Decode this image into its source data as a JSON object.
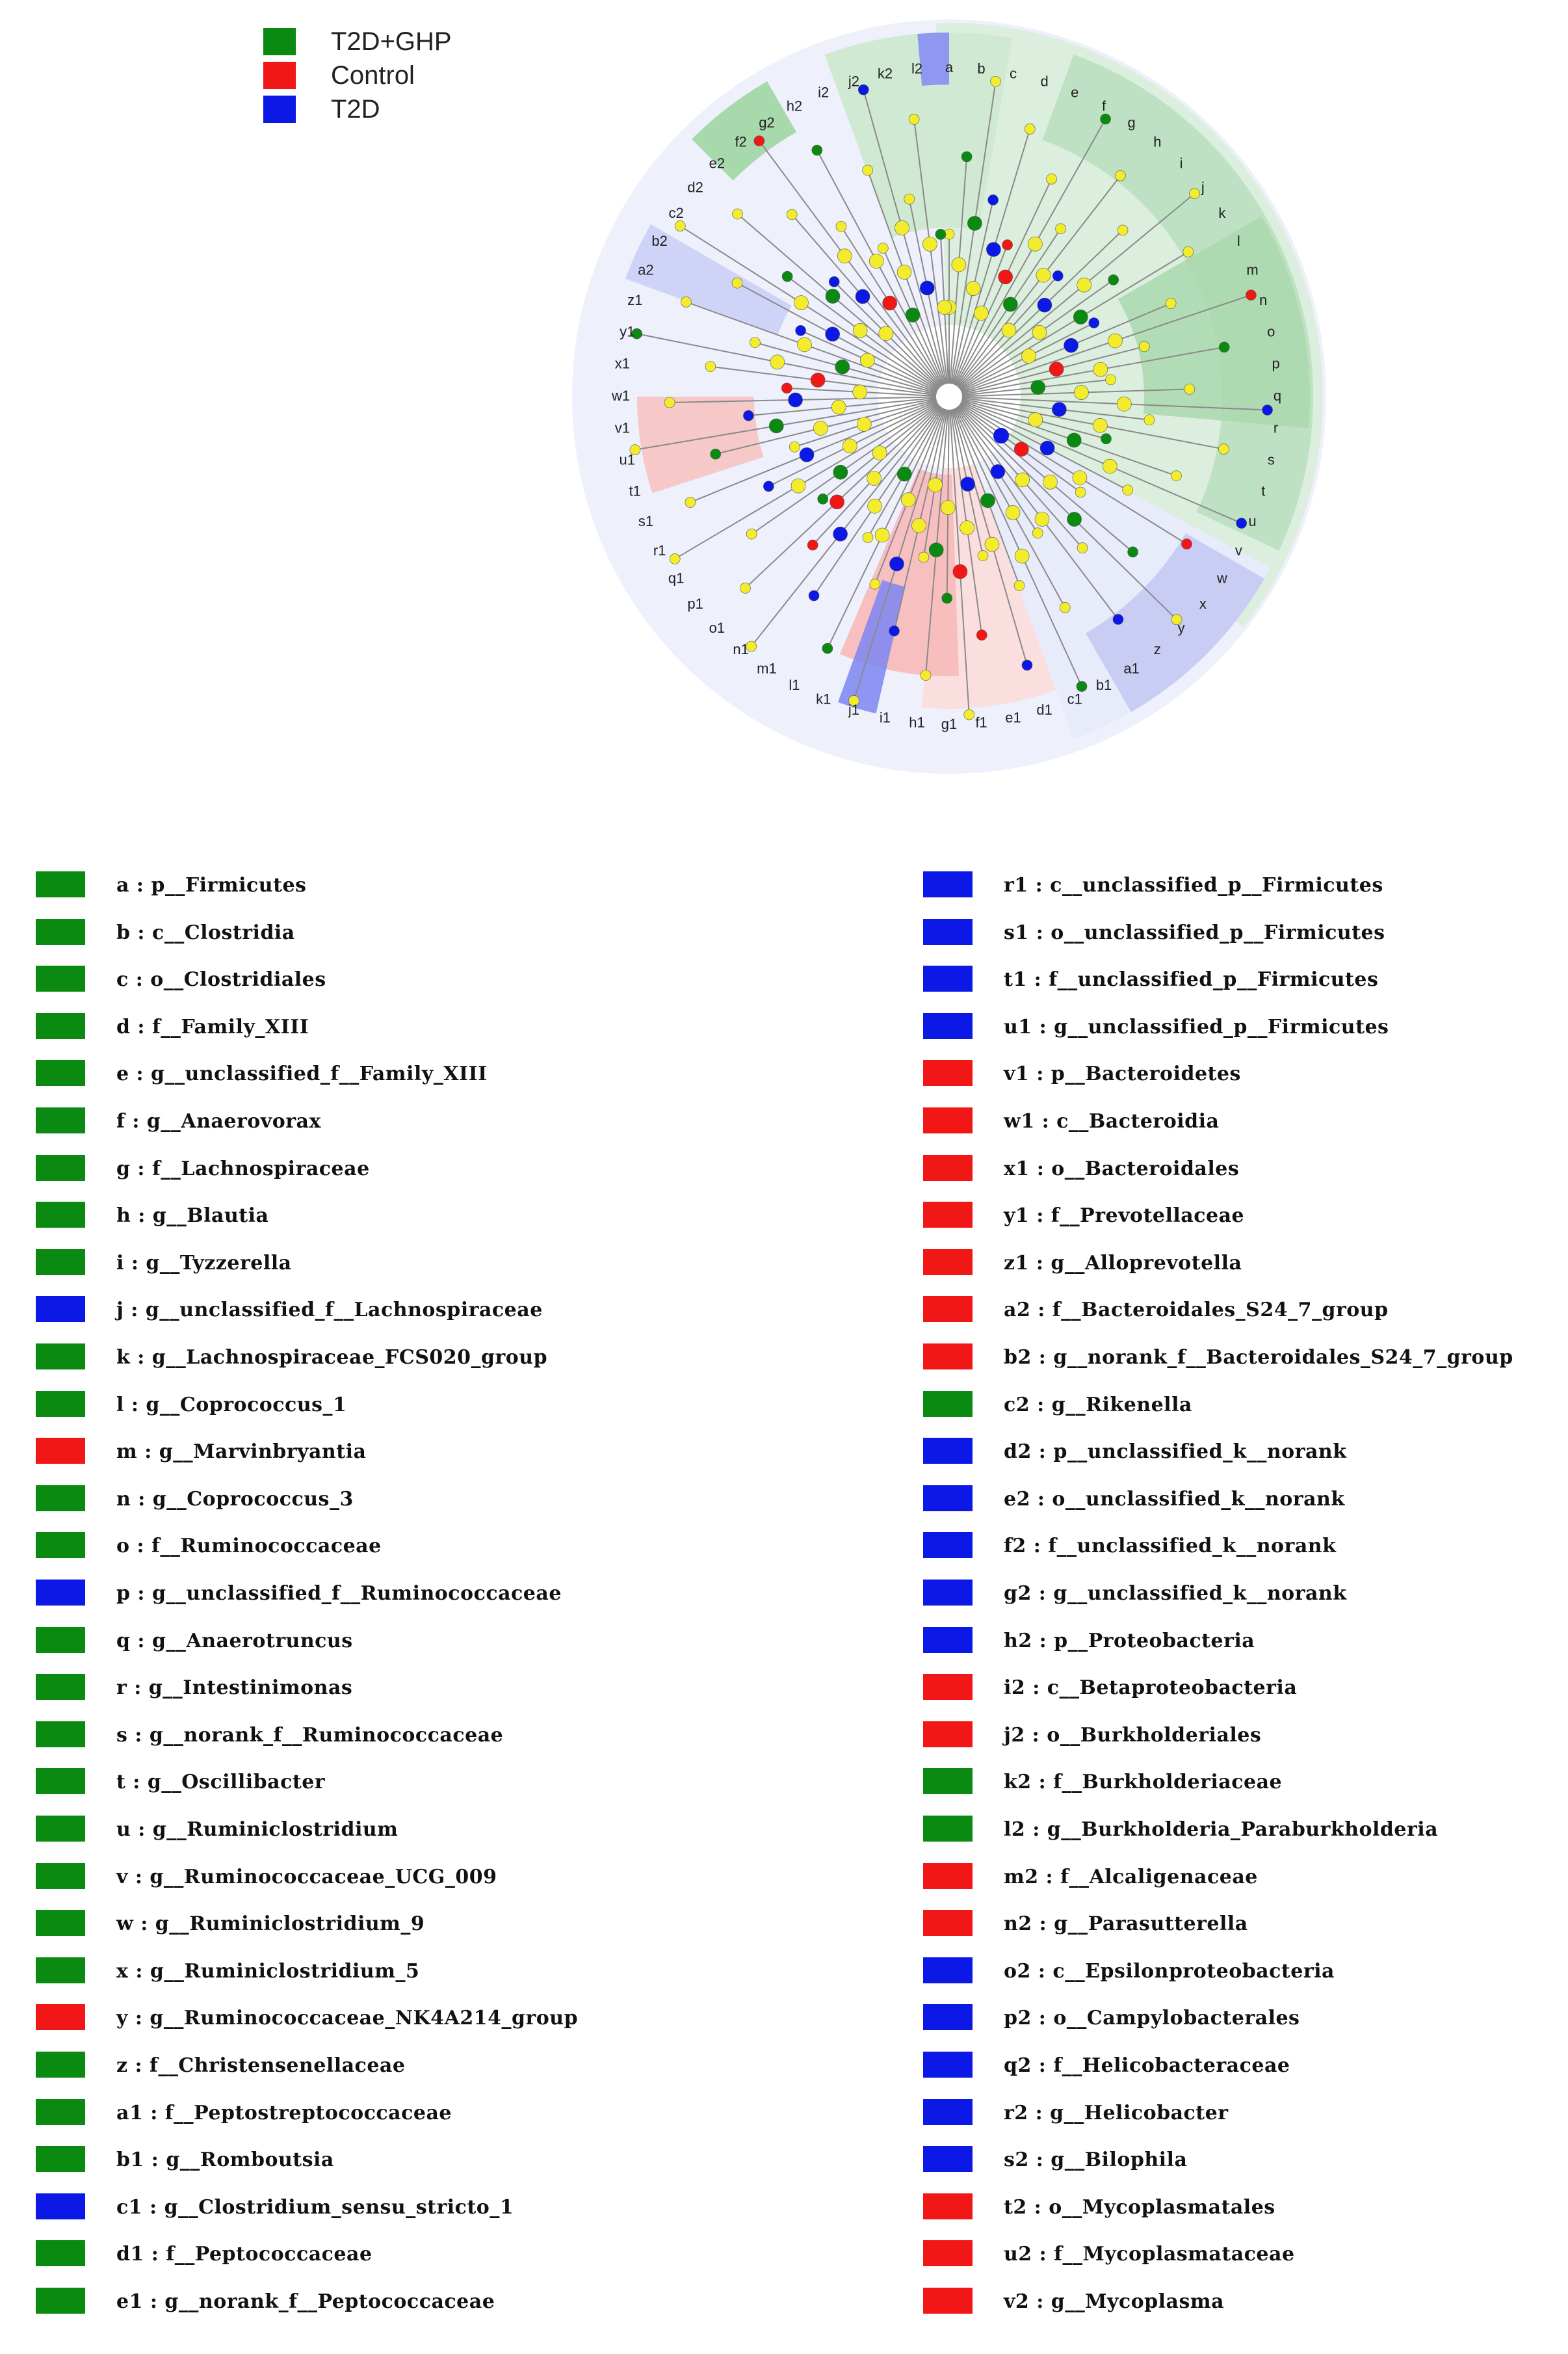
{
  "colors": {
    "T2D+GHP": "#0b8a12",
    "Control": "#f21717",
    "T2D": "#0b18e6",
    "neutral": "#f2ec2c"
  },
  "legend": [
    {
      "label": "T2D+GHP",
      "color": "#0b8a12"
    },
    {
      "label": "Control",
      "color": "#f21717"
    },
    {
      "label": "T2D",
      "color": "#0b18e6"
    }
  ],
  "node_labels": [
    "a",
    "b",
    "c",
    "d",
    "e",
    "f",
    "g",
    "h",
    "i",
    "j",
    "k",
    "l",
    "m",
    "n",
    "o",
    "p",
    "q",
    "r",
    "s",
    "t",
    "u",
    "v",
    "w",
    "x",
    "y",
    "z",
    "a1",
    "b1",
    "c1",
    "d1",
    "e1",
    "f1",
    "g1",
    "h1",
    "i1",
    "j1",
    "k1",
    "l1",
    "m1",
    "n1",
    "o1",
    "p1",
    "q1",
    "r1",
    "s1",
    "t1",
    "u1",
    "v1",
    "w1",
    "x1",
    "y1",
    "z1",
    "a2",
    "b2",
    "c2",
    "d2",
    "e2",
    "f2",
    "g2",
    "h2",
    "i2",
    "j2",
    "k2",
    "l2"
  ],
  "key_left": [
    {
      "text": "a : p__Firmicutes",
      "color": "#0b8a12"
    },
    {
      "text": "b : c__Clostridia",
      "color": "#0b8a12"
    },
    {
      "text": "c : o__Clostridiales",
      "color": "#0b8a12"
    },
    {
      "text": "d : f__Family_XIII",
      "color": "#0b8a12"
    },
    {
      "text": "e : g__unclassified_f__Family_XIII",
      "color": "#0b8a12"
    },
    {
      "text": "f : g__Anaerovorax",
      "color": "#0b8a12"
    },
    {
      "text": "g : f__Lachnospiraceae",
      "color": "#0b8a12"
    },
    {
      "text": "h : g__Blautia",
      "color": "#0b8a12"
    },
    {
      "text": "i : g__Tyzzerella",
      "color": "#0b8a12"
    },
    {
      "text": "j : g__unclassified_f__Lachnospiraceae",
      "color": "#0b18e6"
    },
    {
      "text": "k : g__Lachnospiraceae_FCS020_group",
      "color": "#0b8a12"
    },
    {
      "text": "l : g__Coprococcus_1",
      "color": "#0b8a12"
    },
    {
      "text": "m : g__Marvinbryantia",
      "color": "#f21717"
    },
    {
      "text": "n : g__Coprococcus_3",
      "color": "#0b8a12"
    },
    {
      "text": "o : f__Ruminococcaceae",
      "color": "#0b8a12"
    },
    {
      "text": "p : g__unclassified_f__Ruminococcaceae",
      "color": "#0b18e6"
    },
    {
      "text": "q : g__Anaerotruncus",
      "color": "#0b8a12"
    },
    {
      "text": "r : g__Intestinimonas",
      "color": "#0b8a12"
    },
    {
      "text": "s : g__norank_f__Ruminococcaceae",
      "color": "#0b8a12"
    },
    {
      "text": "t : g__Oscillibacter",
      "color": "#0b8a12"
    },
    {
      "text": "u : g__Ruminiclostridium",
      "color": "#0b8a12"
    },
    {
      "text": "v : g__Ruminococcaceae_UCG_009",
      "color": "#0b8a12"
    },
    {
      "text": "w : g__Ruminiclostridium_9",
      "color": "#0b8a12"
    },
    {
      "text": "x : g__Ruminiclostridium_5",
      "color": "#0b8a12"
    },
    {
      "text": "y : g__Ruminococcaceae_NK4A214_group",
      "color": "#f21717"
    },
    {
      "text": "z : f__Christensenellaceae",
      "color": "#0b8a12"
    },
    {
      "text": "a1 : f__Peptostreptococcaceae",
      "color": "#0b8a12"
    },
    {
      "text": "b1 : g__Romboutsia",
      "color": "#0b8a12"
    },
    {
      "text": "c1 : g__Clostridium_sensu_stricto_1",
      "color": "#0b18e6"
    },
    {
      "text": "d1 : f__Peptococcaceae",
      "color": "#0b8a12"
    },
    {
      "text": "e1 : g__norank_f__Peptococcaceae",
      "color": "#0b8a12"
    }
  ],
  "key_right": [
    {
      "text": "r1 : c__unclassified_p__Firmicutes",
      "color": "#0b18e6"
    },
    {
      "text": "s1 : o__unclassified_p__Firmicutes",
      "color": "#0b18e6"
    },
    {
      "text": "t1 : f__unclassified_p__Firmicutes",
      "color": "#0b18e6"
    },
    {
      "text": "u1 : g__unclassified_p__Firmicutes",
      "color": "#0b18e6"
    },
    {
      "text": "v1 : p__Bacteroidetes",
      "color": "#f21717"
    },
    {
      "text": "w1 : c__Bacteroidia",
      "color": "#f21717"
    },
    {
      "text": "x1 : o__Bacteroidales",
      "color": "#f21717"
    },
    {
      "text": "y1 : f__Prevotellaceae",
      "color": "#f21717"
    },
    {
      "text": "z1 : g__Alloprevotella",
      "color": "#f21717"
    },
    {
      "text": "a2 : f__Bacteroidales_S24_7_group",
      "color": "#f21717"
    },
    {
      "text": "b2 : g__norank_f__Bacteroidales_S24_7_group",
      "color": "#f21717"
    },
    {
      "text": "c2 : g__Rikenella",
      "color": "#0b8a12"
    },
    {
      "text": "d2 : p__unclassified_k__norank",
      "color": "#0b18e6"
    },
    {
      "text": "e2 : o__unclassified_k__norank",
      "color": "#0b18e6"
    },
    {
      "text": "f2 : f__unclassified_k__norank",
      "color": "#0b18e6"
    },
    {
      "text": "g2 : g__unclassified_k__norank",
      "color": "#0b18e6"
    },
    {
      "text": "h2 : p__Proteobacteria",
      "color": "#0b18e6"
    },
    {
      "text": "i2 : c__Betaproteobacteria",
      "color": "#f21717"
    },
    {
      "text": "j2 : o__Burkholderiales",
      "color": "#f21717"
    },
    {
      "text": "k2 : f__Burkholderiaceae",
      "color": "#0b8a12"
    },
    {
      "text": "l2 : g__Burkholderia_Paraburkholderia",
      "color": "#0b8a12"
    },
    {
      "text": "m2 : f__Alcaligenaceae",
      "color": "#f21717"
    },
    {
      "text": "n2 : g__Parasutterella",
      "color": "#f21717"
    },
    {
      "text": "o2 : c__Epsilonproteobacteria",
      "color": "#0b18e6"
    },
    {
      "text": "p2 : o__Campylobacterales",
      "color": "#0b18e6"
    },
    {
      "text": "q2 : f__Helicobacteraceae",
      "color": "#0b18e6"
    },
    {
      "text": "r2 : g__Helicobacter",
      "color": "#0b18e6"
    },
    {
      "text": "s2 : g__Bilophila",
      "color": "#0b18e6"
    },
    {
      "text": "t2 : o__Mycoplasmatales",
      "color": "#f21717"
    },
    {
      "text": "u2 : f__Mycoplasmataceae",
      "color": "#f21717"
    },
    {
      "text": "v2 : g__Mycoplasma",
      "color": "#f21717"
    }
  ]
}
